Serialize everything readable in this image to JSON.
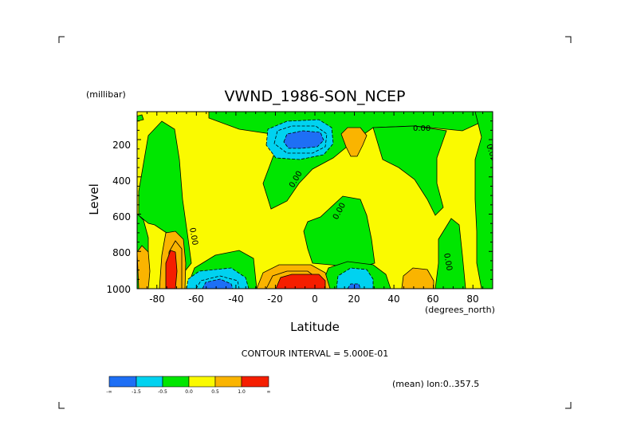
{
  "chart_data": {
    "type": "filled-contour",
    "title": "VWND_1986-SON_NCEP",
    "xlabel": "Latitude",
    "ylabel": "Level",
    "x_unit": "(degrees_north)",
    "y_unit": "(millibar)",
    "x_range": [
      -90,
      90
    ],
    "y_range": [
      1000,
      50
    ],
    "y_inverted": true,
    "x_ticks": [
      "-80",
      "-60",
      "-40",
      "-20",
      "0",
      "20",
      "40",
      "60",
      "80"
    ],
    "y_ticks": [
      "200",
      "400",
      "600",
      "800",
      "1000"
    ],
    "contour_interval_label": "CONTOUR INTERVAL = 5.000E-01",
    "contour_labels": [
      "0.00",
      "0.00",
      "0.00",
      "0.00",
      "0.00",
      "0.00"
    ],
    "annotation": "(mean) lon:0..357.5",
    "colorbar": {
      "colors": [
        "#1e6ff5",
        "#00d2f0",
        "#00e600",
        "#fafa00",
        "#fab400",
        "#f51e00"
      ],
      "labels": [
        "-∞",
        "-1.5",
        "-0.5",
        "0.0",
        "0.5",
        "1.0",
        "∞"
      ]
    },
    "features": [
      {
        "label": "negative core",
        "lat": -10,
        "level": 170,
        "value": -2.0
      },
      {
        "label": "negative core",
        "lat": -55,
        "level": 970,
        "value": -2.0
      },
      {
        "label": "negative",
        "lat": 20,
        "level": 960,
        "value": -1.0
      },
      {
        "label": "positive core",
        "lat": -10,
        "level": 960,
        "value": 1.5
      },
      {
        "label": "positive core",
        "lat": -73,
        "level": 920,
        "value": 1.5
      },
      {
        "label": "positive",
        "lat": 22,
        "level": 170,
        "value": 0.7
      },
      {
        "label": "positive",
        "lat": 52,
        "level": 960,
        "value": 0.7
      }
    ]
  }
}
